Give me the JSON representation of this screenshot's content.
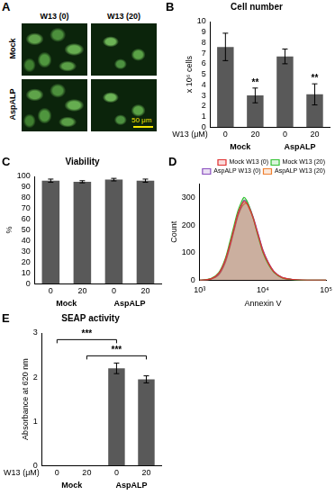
{
  "panel_a": {
    "panel": "A",
    "columns": [
      "W13 (0)",
      "W13 (20)"
    ],
    "rows": [
      "Mock",
      "AspALP"
    ],
    "scale_bar": "50 μm"
  },
  "chart_data": [
    {
      "panel": "B",
      "type": "bar",
      "title": "Cell number",
      "y_label": "x 10⁶ cells",
      "x_label": "W13 (μM)",
      "categories": [
        "0",
        "20",
        "0",
        "20"
      ],
      "groups": [
        "Mock",
        "AspALP"
      ],
      "values": [
        7.6,
        3.0,
        6.7,
        3.1
      ],
      "errors": [
        1.3,
        0.7,
        0.7,
        1.0
      ],
      "significance": [
        null,
        "**",
        null,
        "**"
      ],
      "color": "#595959",
      "ylim": [
        0,
        10
      ],
      "yticks": [
        0,
        1,
        2,
        3,
        4,
        5,
        6,
        7,
        8,
        9,
        10
      ],
      "grid": false
    },
    {
      "panel": "C",
      "type": "bar",
      "title": "Viability",
      "y_label": "%",
      "categories": [
        "0",
        "20",
        "0",
        "20"
      ],
      "groups": [
        "Mock",
        "AspALP"
      ],
      "values": [
        96,
        95,
        97,
        96
      ],
      "errors": [
        1.5,
        1.0,
        1.2,
        1.5
      ],
      "color": "#595959",
      "ylim": [
        0,
        100
      ],
      "yticks": [
        0,
        10,
        20,
        30,
        40,
        50,
        60,
        70,
        80,
        90,
        100
      ],
      "grid": false
    },
    {
      "panel": "D",
      "type": "line",
      "x_label": "Annexin V",
      "y_label": "Count",
      "log": "x",
      "legend": "upper right",
      "x": [
        1000,
        1500,
        2000,
        2500,
        3000,
        3500,
        4000,
        4500,
        5000,
        5500,
        6000,
        7000,
        8000,
        9000,
        10000,
        12000,
        15000,
        20000,
        30000,
        50000,
        100000
      ],
      "series": [
        {
          "name": "Mock W13 (0)",
          "color": "#e03030",
          "values": [
            0,
            5,
            25,
            70,
            130,
            190,
            240,
            270,
            285,
            280,
            265,
            225,
            180,
            140,
            105,
            65,
            30,
            10,
            3,
            0,
            0
          ]
        },
        {
          "name": "Mock W13 (20)",
          "color": "#33c233",
          "values": [
            0,
            6,
            28,
            75,
            140,
            200,
            250,
            280,
            300,
            290,
            270,
            225,
            175,
            135,
            100,
            60,
            28,
            9,
            2,
            0,
            0
          ]
        },
        {
          "name": "AspALP W13 (0)",
          "color": "#8a4fbf",
          "values": [
            0,
            5,
            22,
            65,
            125,
            185,
            235,
            265,
            290,
            285,
            270,
            230,
            185,
            145,
            110,
            68,
            32,
            11,
            3,
            0,
            0
          ]
        },
        {
          "name": "AspALP W13 (20)",
          "color": "#f08030",
          "values": [
            0,
            4,
            20,
            60,
            120,
            180,
            230,
            260,
            275,
            278,
            262,
            228,
            182,
            142,
            108,
            66,
            31,
            10,
            3,
            0,
            0
          ]
        }
      ],
      "xlim": [
        1000,
        100000
      ],
      "xticks": [
        {
          "value": 1000,
          "label": "10³"
        },
        {
          "value": 10000,
          "label": "10⁴"
        },
        {
          "value": 100000,
          "label": "10⁵"
        }
      ],
      "ylim": [
        0,
        350
      ],
      "yticks": [
        0,
        100,
        200,
        300
      ],
      "grid": false
    },
    {
      "panel": "E",
      "type": "bar",
      "title": "SEAP activity",
      "y_label": "Absorbance at 620 nm",
      "x_label": "W13 (μM)",
      "categories": [
        "0",
        "20",
        "0",
        "20"
      ],
      "groups": [
        "Mock",
        "AspALP"
      ],
      "values": [
        0,
        0,
        2.2,
        1.95
      ],
      "errors": [
        0,
        0,
        0.12,
        0.08
      ],
      "comparisons": [
        {
          "between": [
            0,
            2
          ],
          "label": "***"
        },
        {
          "between": [
            1,
            3
          ],
          "label": "***"
        }
      ],
      "color": "#595959",
      "ylim": [
        0,
        3
      ],
      "yticks": [
        0,
        1,
        2,
        3
      ],
      "grid": false
    }
  ]
}
